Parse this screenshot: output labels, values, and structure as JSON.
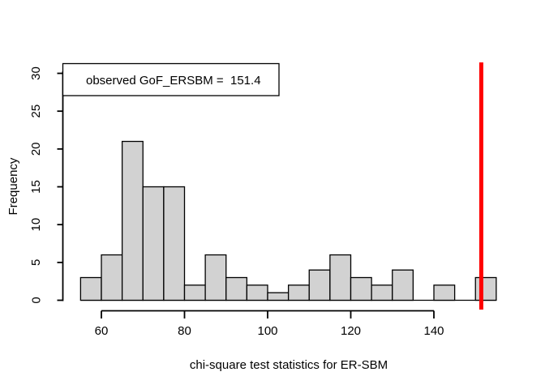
{
  "figure": {
    "background": "#ffffff",
    "axis_color": "#000000",
    "text_color": "#000000"
  },
  "chart_data": {
    "type": "bar",
    "subtype": "histogram",
    "title": "",
    "xlabel": "chi-square test statistics for ER-SBM",
    "ylabel": "Frequency",
    "bin_edges": [
      55,
      60,
      65,
      70,
      75,
      80,
      85,
      90,
      95,
      100,
      105,
      110,
      115,
      120,
      125,
      130,
      135,
      140,
      145,
      150,
      155
    ],
    "counts": [
      3,
      6,
      21,
      15,
      15,
      2,
      6,
      3,
      2,
      1,
      2,
      4,
      6,
      3,
      2,
      4,
      0,
      2,
      0,
      3
    ],
    "x_ticks": [
      60,
      80,
      100,
      120,
      140
    ],
    "y_ticks": [
      0,
      5,
      10,
      15,
      20,
      25,
      30
    ],
    "xlim": [
      55,
      155
    ],
    "ylim": [
      0,
      30
    ],
    "grid": false,
    "bar_fill": "#d2d2d2",
    "bar_border": "#000000",
    "vline": {
      "x": 151.4,
      "color": "#ff0000"
    },
    "legend": {
      "label": "observed GoF_ERSBM =  151.4",
      "position": "topleft"
    }
  }
}
